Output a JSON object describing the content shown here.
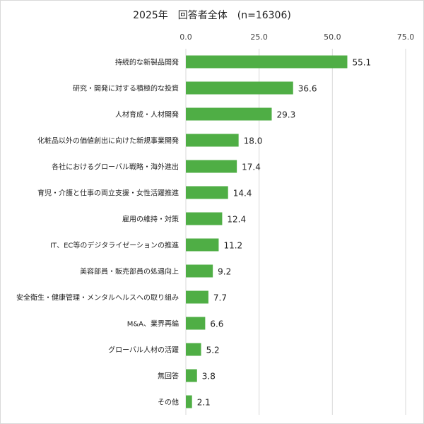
{
  "chart_data": {
    "type": "bar",
    "orientation": "horizontal",
    "title": "2025年　回答者全体　(n=16306)",
    "xlim": [
      0,
      75
    ],
    "xticks": [
      0,
      25,
      50,
      75
    ],
    "xtick_labels": [
      "0.0",
      "25.0",
      "50.0",
      "75.0"
    ],
    "axis_position": "top",
    "grid": true,
    "bar_color": "#4fae45",
    "categories": [
      "持続的な新製品開発",
      "研究・開発に対する積極的な投資",
      "人材育成・人材開発",
      "化粧品以外の価値創出に向けた新規事業開発",
      "各社におけるグローバル戦略・海外進出",
      "育児・介護と仕事の両立支援・女性活躍推進",
      "雇用の維持・対策",
      "IT、EC等のデジタライゼーションの推進",
      "美容部員・販売部員の処遇向上",
      "安全衛生・健康管理・メンタルヘルスへの取り組み",
      "M&A、業界再編",
      "グローバル人材の活躍",
      "無回答",
      "その他"
    ],
    "values": [
      55.1,
      36.6,
      29.3,
      18.0,
      17.4,
      14.4,
      12.4,
      11.2,
      9.2,
      7.7,
      6.6,
      5.2,
      3.8,
      2.1
    ],
    "value_labels": [
      "55.1",
      "36.6",
      "29.3",
      "18.0",
      "17.4",
      "14.4",
      "12.4",
      "11.2",
      "9.2",
      "7.7",
      "6.6",
      "5.2",
      "3.8",
      "2.1"
    ]
  }
}
